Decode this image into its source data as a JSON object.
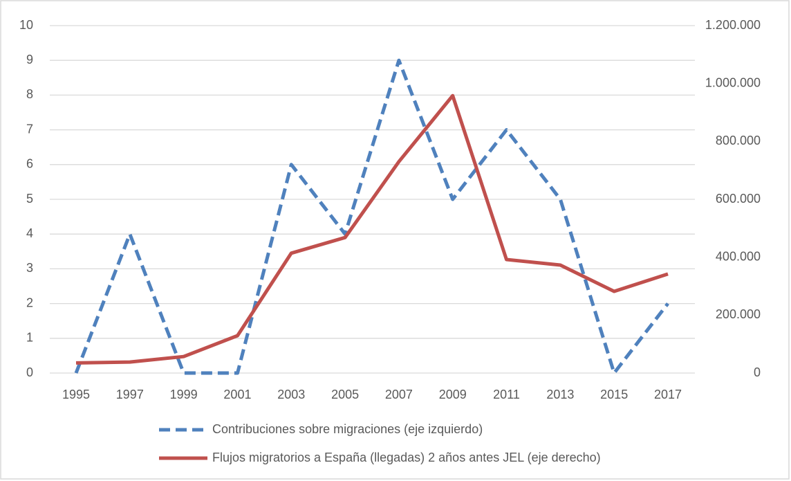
{
  "chart_data": {
    "type": "line",
    "categories": [
      "1995",
      "1997",
      "1999",
      "2001",
      "2003",
      "2005",
      "2007",
      "2009",
      "2011",
      "2013",
      "2015",
      "2017"
    ],
    "series": [
      {
        "name": "Contribuciones sobre migraciones (eje izquierdo)",
        "color": "#4f81bd",
        "dashed": true,
        "axis": "y",
        "values": [
          0,
          4,
          0,
          0,
          6,
          4,
          9,
          5,
          7,
          5,
          0,
          2
        ]
      },
      {
        "name": "Flujos migratorios a España (llegadas) 2 años antes JEL (eje derecho)",
        "color": "#c0504d",
        "dashed": false,
        "axis": "y2",
        "values": [
          35000,
          38000,
          57000,
          129000,
          414000,
          468000,
          730000,
          958000,
          392000,
          373000,
          282000,
          342000
        ]
      }
    ],
    "ylim": [
      0,
      10
    ],
    "yticks": [
      0,
      1,
      2,
      3,
      4,
      5,
      6,
      7,
      8,
      9,
      10
    ],
    "y2lim": [
      0,
      1200000
    ],
    "y2ticks": [
      0,
      {
        "value": 200000,
        "label": "200.000"
      },
      {
        "value": 400000,
        "label": "400.000"
      },
      {
        "value": 600000,
        "label": "600.000"
      },
      {
        "value": 800000,
        "label": "800.000"
      },
      {
        "value": 1000000,
        "label": "1.000.000"
      },
      {
        "value": 1200000,
        "label": "1.200.000"
      }
    ],
    "grid": true,
    "legend": "bottom"
  }
}
